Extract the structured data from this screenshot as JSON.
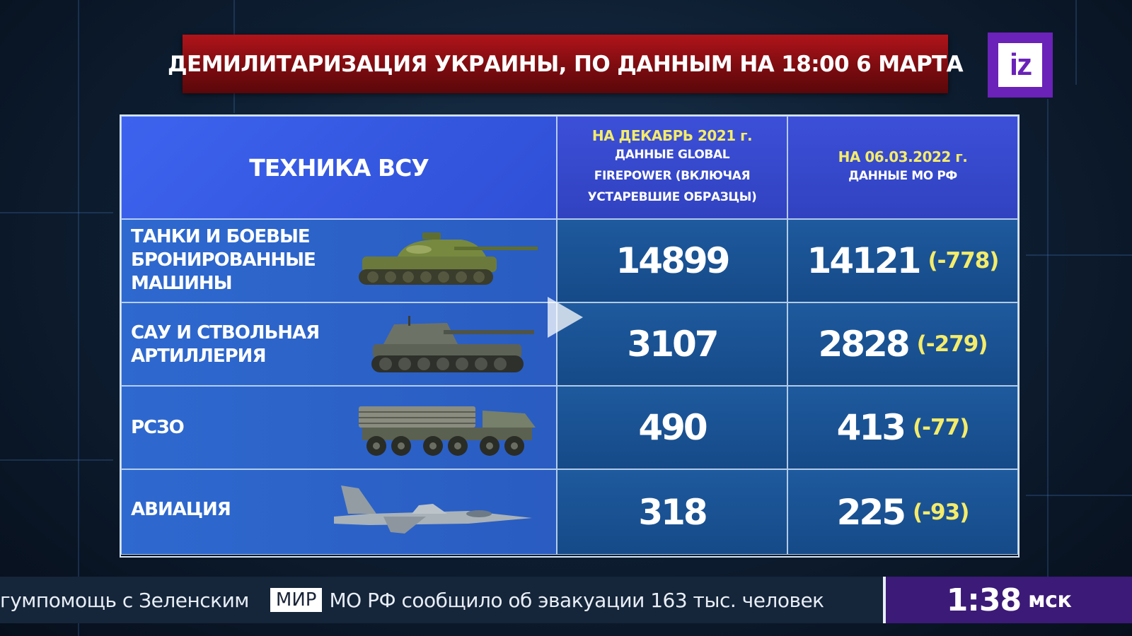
{
  "title": "ДЕМИЛИТАРИЗАЦИЯ УКРАИНЫ, ПО ДАННЫМ НА 18:00 6 МАРТА",
  "logo": {
    "text": "iz",
    "color": "#6a22b8"
  },
  "table": {
    "header": {
      "col1": "ТЕХНИКА ВСУ",
      "col2": {
        "line1": "НА ДЕКАБРЬ 2021 г.",
        "line2": "ДАННЫЕ GLOBAL",
        "line3": "FIREPOWER (ВКЛЮЧАЯ",
        "line4": "УСТАРЕВШИЕ ОБРАЗЦЫ)"
      },
      "col3": {
        "line1": "НА 06.03.2022 г.",
        "line2": "ДАННЫЕ МО РФ"
      }
    },
    "rows": [
      {
        "label1": "ТАНКИ И БОЕВЫЕ",
        "label2": "БРОНИРОВАННЫЕ",
        "label3": "МАШИНЫ",
        "icon": "tank-icon",
        "dec2021": "14899",
        "mar2022": "14121",
        "delta": "(-778)"
      },
      {
        "label1": "САУ И СТВОЛЬНАЯ",
        "label2": "АРТИЛЛЕРИЯ",
        "icon": "self-propelled-howitzer-icon",
        "dec2021": "3107",
        "mar2022": "2828",
        "delta": "(-279)"
      },
      {
        "label1": "РСЗО",
        "icon": "rocket-launcher-truck-icon",
        "dec2021": "490",
        "mar2022": "413",
        "delta": "(-77)"
      },
      {
        "label1": "АВИАЦИЯ",
        "icon": "fighter-jet-icon",
        "dec2021": "318",
        "mar2022": "225",
        "delta": "(-93)"
      }
    ]
  },
  "ticker": {
    "left_text": "гумпомощь с Зеленским",
    "badge": "МИР",
    "right_text": "МО РФ сообщило об эвакуации 163 тыс. человек"
  },
  "clock": {
    "time": "1:38",
    "tz": "мск"
  },
  "colors": {
    "title_red": "#9a1016",
    "header_blue": "#3d63ee",
    "cell_blue": "#1e5a9e",
    "accent_yellow": "#f4ec6a",
    "clock_purple": "#3c1a78"
  }
}
